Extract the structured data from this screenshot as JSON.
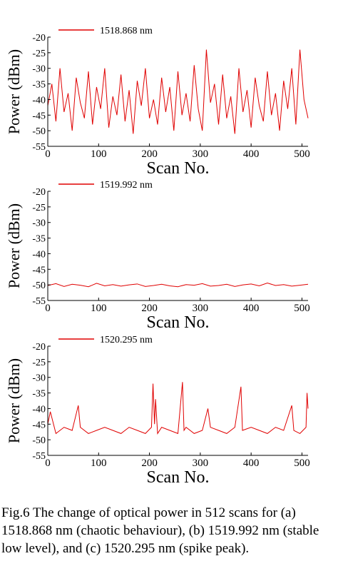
{
  "chart_data": [
    {
      "type": "line",
      "xlabel": "Scan No.",
      "ylabel": "Power (dBm)",
      "xlim": [
        0,
        512
      ],
      "ylim": [
        -55,
        -20
      ],
      "xticks": [
        0,
        100,
        200,
        300,
        400,
        500
      ],
      "yticks": [
        -55,
        -50,
        -45,
        -40,
        -35,
        -30,
        -25,
        -20
      ],
      "x": [
        0,
        8,
        16,
        24,
        32,
        40,
        48,
        56,
        64,
        72,
        80,
        88,
        96,
        104,
        112,
        120,
        128,
        136,
        144,
        152,
        160,
        168,
        176,
        184,
        192,
        200,
        208,
        216,
        224,
        232,
        240,
        248,
        256,
        264,
        272,
        280,
        288,
        296,
        304,
        312,
        320,
        328,
        336,
        344,
        352,
        360,
        368,
        376,
        384,
        392,
        400,
        408,
        416,
        424,
        432,
        440,
        448,
        456,
        464,
        472,
        480,
        488,
        496,
        504,
        512
      ],
      "series": [
        {
          "name": "1518.868 nm",
          "color": "#e00000",
          "values": [
            -42,
            -35,
            -47,
            -30,
            -44,
            -38,
            -50,
            -33,
            -41,
            -46,
            -31,
            -48,
            -36,
            -43,
            -30,
            -49,
            -39,
            -45,
            -32,
            -47,
            -37,
            -51,
            -34,
            -42,
            -30,
            -46,
            -40,
            -48,
            -33,
            -44,
            -36,
            -50,
            -31,
            -45,
            -38,
            -47,
            -29,
            -43,
            -50,
            -24,
            -41,
            -35,
            -48,
            -32,
            -46,
            -39,
            -51,
            -30,
            -44,
            -37,
            -49,
            -33,
            -42,
            -47,
            -31,
            -45,
            -38,
            -50,
            -34,
            -43,
            -30,
            -48,
            -24,
            -40,
            -46
          ]
        }
      ]
    },
    {
      "type": "line",
      "xlabel": "Scan No.",
      "ylabel": "Power (dBm)",
      "xlim": [
        0,
        512
      ],
      "ylim": [
        -55,
        -20
      ],
      "xticks": [
        0,
        100,
        200,
        300,
        400,
        500
      ],
      "yticks": [
        -55,
        -50,
        -45,
        -40,
        -35,
        -30,
        -25,
        -20
      ],
      "x": [
        0,
        16,
        32,
        48,
        64,
        80,
        96,
        112,
        128,
        144,
        160,
        176,
        192,
        208,
        224,
        240,
        256,
        272,
        288,
        304,
        320,
        336,
        352,
        368,
        384,
        400,
        416,
        432,
        448,
        464,
        480,
        496,
        512
      ],
      "series": [
        {
          "name": "1519.992 nm",
          "color": "#e00000",
          "values": [
            -50.2,
            -49.6,
            -50.5,
            -49.8,
            -50.1,
            -50.6,
            -49.5,
            -50.3,
            -49.9,
            -50.4,
            -50.0,
            -49.7,
            -50.5,
            -50.2,
            -49.8,
            -50.3,
            -50.6,
            -49.9,
            -50.1,
            -49.6,
            -50.4,
            -50.2,
            -49.8,
            -50.5,
            -50.0,
            -49.7,
            -50.3,
            -49.4,
            -50.2,
            -49.9,
            -50.4,
            -50.1,
            -49.8
          ]
        }
      ]
    },
    {
      "type": "line",
      "xlabel": "Scan No.",
      "ylabel": "Power (dBm)",
      "xlim": [
        0,
        512
      ],
      "ylim": [
        -55,
        -20
      ],
      "xticks": [
        0,
        100,
        200,
        300,
        400,
        500
      ],
      "yticks": [
        -55,
        -50,
        -45,
        -40,
        -35,
        -30,
        -25,
        -20
      ],
      "x": [
        0,
        5,
        16,
        32,
        48,
        60,
        64,
        80,
        96,
        112,
        128,
        144,
        160,
        176,
        192,
        204,
        207,
        210,
        212,
        216,
        224,
        240,
        256,
        265,
        268,
        272,
        288,
        304,
        315,
        320,
        336,
        352,
        368,
        380,
        383,
        400,
        416,
        432,
        448,
        464,
        480,
        484,
        496,
        508,
        510,
        512
      ],
      "series": [
        {
          "name": "1520.295 nm",
          "color": "#e00000",
          "values": [
            -45,
            -41,
            -48,
            -46,
            -47,
            -39,
            -46,
            -48,
            -47,
            -46,
            -47,
            -48,
            -46,
            -47,
            -48,
            -46,
            -32,
            -45,
            -37,
            -48,
            -46,
            -47,
            -48,
            -31.5,
            -47,
            -46,
            -48,
            -47,
            -40,
            -46,
            -47,
            -48,
            -46,
            -33,
            -47,
            -46,
            -47,
            -48,
            -46,
            -47,
            -39,
            -47,
            -48,
            -46,
            -35,
            -40
          ]
        }
      ]
    }
  ],
  "caption": "Fig.6 The change of optical power in 512 scans for (a) 1518.868 nm (chaotic behaviour), (b) 1519.992 nm (stable low level), and (c) 1520.295 nm (spike peak)."
}
